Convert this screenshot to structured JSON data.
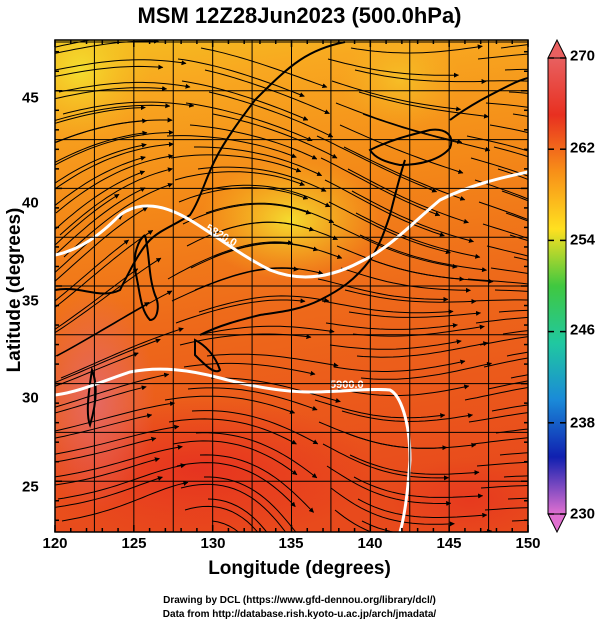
{
  "title": "MSM 12Z28Jun2023 (500.0hPa)",
  "axes": {
    "xlabel": "Longitude (degrees)",
    "ylabel": "Latitude  (degrees)",
    "xticks": [
      "120",
      "125",
      "130",
      "135",
      "140",
      "145",
      "150"
    ],
    "yticks": [
      "45",
      "40",
      "35",
      "30",
      "25"
    ],
    "xlim": [
      120,
      150
    ],
    "ylim": [
      22.4,
      47.6
    ]
  },
  "colorbar": {
    "ticks": [
      "270",
      "262",
      "254",
      "246",
      "238",
      "230"
    ],
    "range": [
      230,
      270
    ],
    "colors": [
      "#e070d0",
      "#1020b0",
      "#1a8ad8",
      "#20c8a0",
      "#40c840",
      "#ffe020",
      "#f89018",
      "#e83020",
      "#e86060"
    ]
  },
  "contours": [
    {
      "label": "5820.0"
    },
    {
      "label": "5900.0"
    }
  ],
  "footer": {
    "line1": "Drawing by DCL (https://www.gfd-dennou.org/library/dcl/)",
    "line2": "Data from http://database.rish.kyoto-u.ac.jp/arch/jmadata/"
  }
}
